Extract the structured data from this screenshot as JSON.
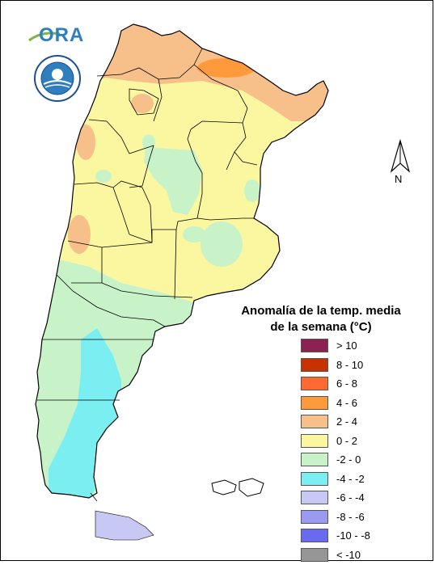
{
  "legend": {
    "title_line1": "Anomalía de la temp. media",
    "title_line2": "de la semana (°C)",
    "items": [
      {
        "label": "> 10",
        "color": "#8b2252"
      },
      {
        "label": "8 - 10",
        "color": "#c83200"
      },
      {
        "label": "6 - 8",
        "color": "#ff6a33"
      },
      {
        "label": "4 - 6",
        "color": "#ff9a3c"
      },
      {
        "label": "2 - 4",
        "color": "#f7c08a"
      },
      {
        "label": "0 - 2",
        "color": "#fbf7a0"
      },
      {
        "label": "-2 - 0",
        "color": "#c8f2c8"
      },
      {
        "label": "-4 - -2",
        "color": "#7aeef0"
      },
      {
        "label": "-6 - -4",
        "color": "#c8c8f4"
      },
      {
        "label": "-8 - -6",
        "color": "#9a9af0"
      },
      {
        "label": "-10 - -8",
        "color": "#6a6af0"
      },
      {
        "label": "< -10",
        "color": "#969696"
      }
    ]
  },
  "logos": {
    "ora_text": "ORA"
  },
  "north_arrow": {
    "label": "N"
  }
}
